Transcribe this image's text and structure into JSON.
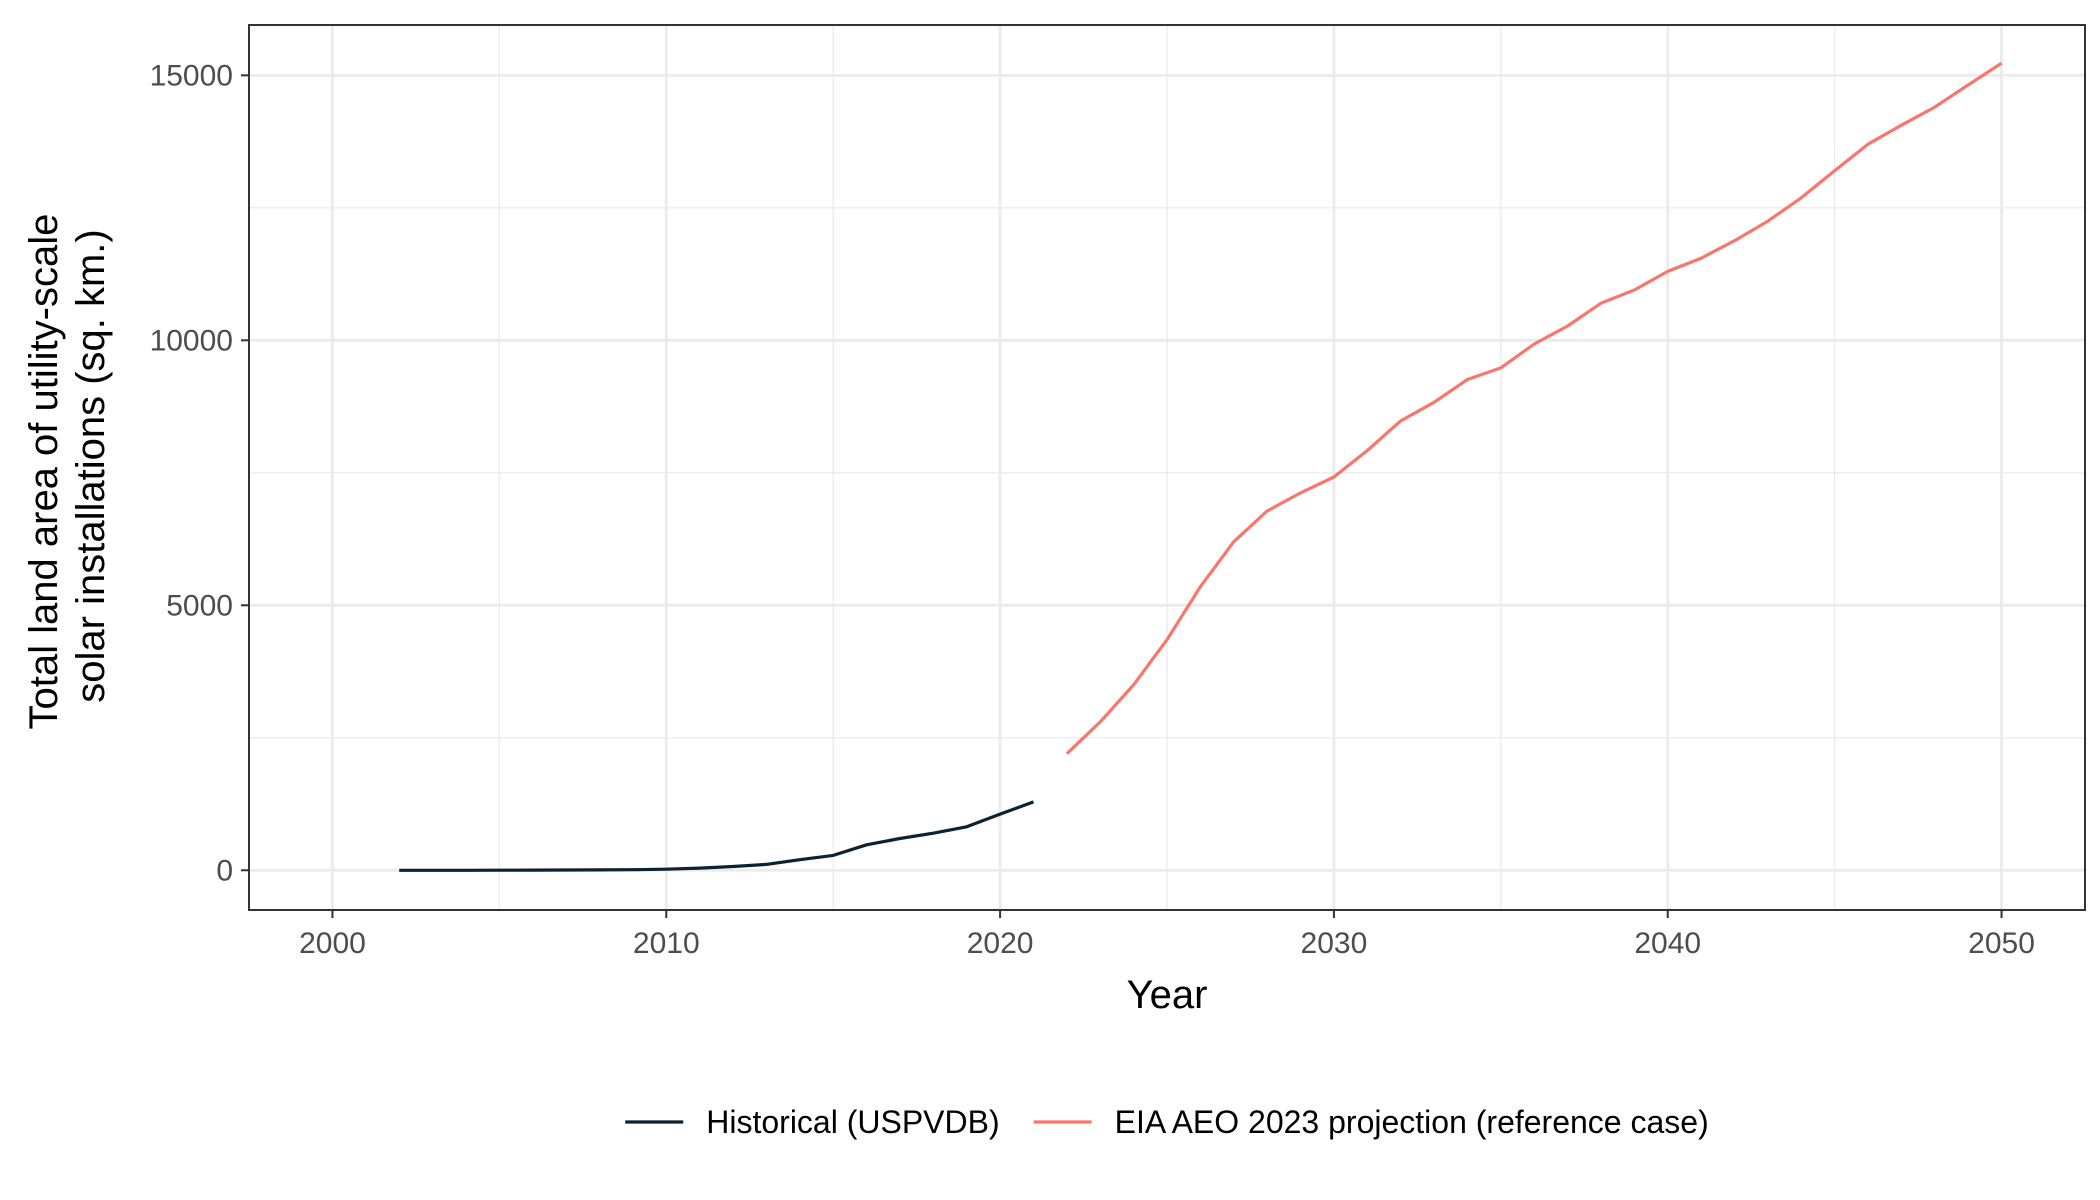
{
  "chart_data": {
    "type": "line",
    "title": "",
    "xlabel": "Year",
    "ylabel_lines": [
      "Total land area of utility-scale",
      "solar installations (sq. km.)"
    ],
    "xlim": [
      1997.5,
      2052.5
    ],
    "ylim": [
      -750,
      15950
    ],
    "x_ticks": [
      2000,
      2010,
      2020,
      2030,
      2040,
      2050
    ],
    "y_ticks": [
      0,
      5000,
      10000,
      15000
    ],
    "grid": true,
    "legend_position": "bottom",
    "series": [
      {
        "name": "Historical (USPVDB)",
        "color": "#0b2233",
        "x": [
          2002,
          2003,
          2004,
          2005,
          2006,
          2007,
          2008,
          2009,
          2010,
          2011,
          2012,
          2013,
          2014,
          2015,
          2016,
          2017,
          2018,
          2019,
          2020,
          2021
        ],
        "y": [
          0,
          0,
          0,
          1,
          2,
          4,
          6,
          10,
          20,
          40,
          70,
          110,
          200,
          280,
          480,
          600,
          700,
          820,
          1060,
          1290
        ]
      },
      {
        "name": "EIA AEO 2023 projection (reference case)",
        "color": "#f8766d",
        "x": [
          2022,
          2023,
          2024,
          2025,
          2026,
          2027,
          2028,
          2029,
          2030,
          2031,
          2032,
          2033,
          2034,
          2035,
          2036,
          2037,
          2038,
          2039,
          2040,
          2041,
          2042,
          2043,
          2044,
          2045,
          2046,
          2047,
          2048,
          2049,
          2050
        ],
        "y": [
          2200,
          2800,
          3500,
          4350,
          5350,
          6200,
          6780,
          7120,
          7420,
          7920,
          8480,
          8830,
          9260,
          9480,
          9930,
          10270,
          10700,
          10950,
          11300,
          11550,
          11880,
          12250,
          12690,
          13200,
          13700,
          14060,
          14400,
          14820,
          15230
        ]
      }
    ]
  }
}
